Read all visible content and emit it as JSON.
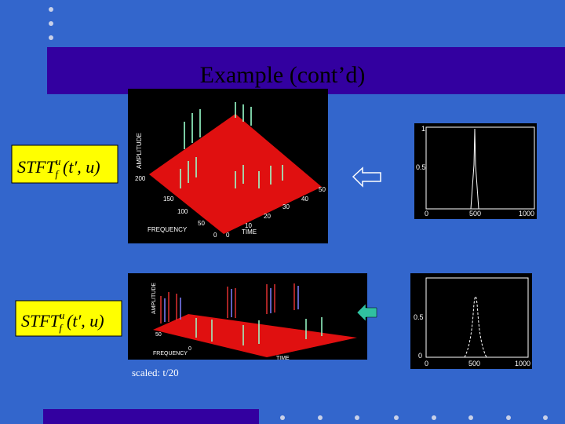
{
  "header": {
    "title": "Example (cont’d)"
  },
  "formulas": [
    {
      "base": "STFT",
      "sub": "f",
      "sup": "u",
      "args": "(t′, u)"
    },
    {
      "base": "STFT",
      "sub": "f",
      "sup": "u",
      "args": "(t′, u)"
    }
  ],
  "plots3d": [
    {
      "z_label": "AMPLITUDE",
      "y_label": "FREQUENCY",
      "x_label": "TIME",
      "y_ticks": [
        "200",
        "150",
        "100",
        "50",
        "0"
      ],
      "x_ticks": [
        "0",
        "10",
        "20",
        "30",
        "40",
        "50"
      ]
    },
    {
      "z_label": "AMPLITUDE",
      "y_label": "FREQUENCY",
      "x_label": "TIME",
      "y_ticks": [
        "50",
        "0"
      ]
    }
  ],
  "plots2d": [
    {
      "y_ticks": [
        "1",
        "0.5",
        "0"
      ],
      "x_ticks": [
        "0",
        "500",
        "1000"
      ]
    },
    {
      "y_ticks": [
        "0.5",
        "0"
      ],
      "x_ticks": [
        "0",
        "500",
        "1000"
      ]
    }
  ],
  "caption": "scaled: t/20"
}
